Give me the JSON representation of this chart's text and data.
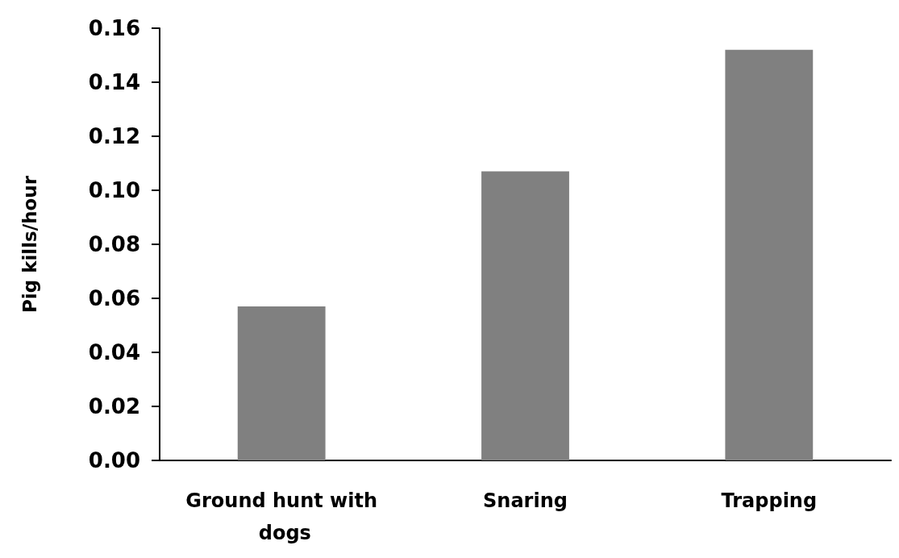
{
  "chart_data": {
    "type": "bar",
    "ylabel": "Pig kills/hour",
    "categories": [
      "Ground hunt with dogs",
      "Snaring",
      "Trapping"
    ],
    "values": [
      0.057,
      0.107,
      0.152
    ],
    "color": "#808080",
    "ylim": [
      0,
      0.16
    ],
    "yticks": [
      {
        "value": 0,
        "label": "0.00"
      },
      0.02,
      0.04,
      0.06,
      0.08,
      {
        "value": 0.1,
        "label": "0.10"
      },
      0.12,
      0.14,
      0.16
    ],
    "grid": false
  }
}
